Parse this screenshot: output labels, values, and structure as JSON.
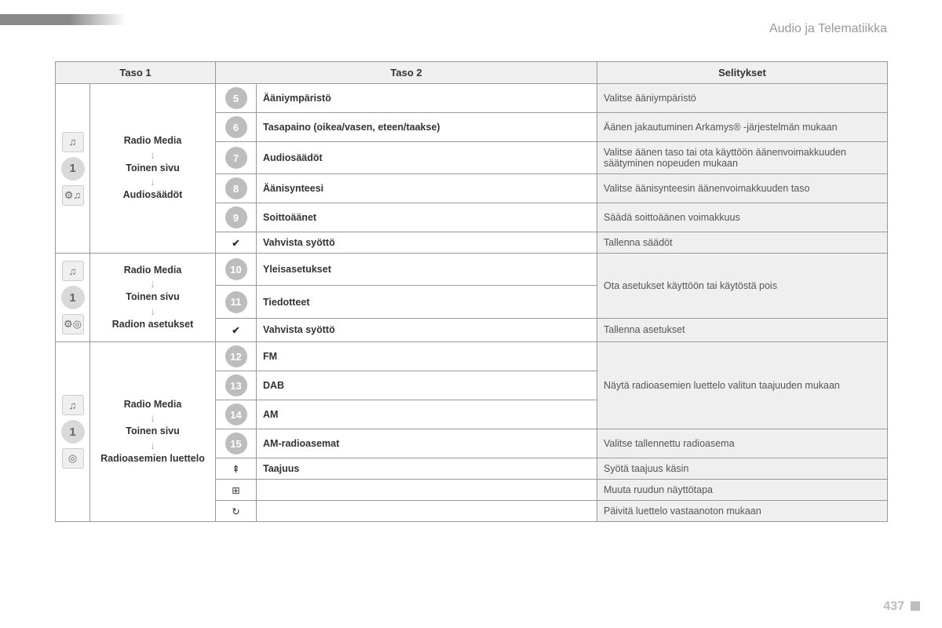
{
  "header": "Audio ja Telematiikka",
  "page_number": "437",
  "columns": {
    "taso1": "Taso 1",
    "taso2": "Taso 2",
    "selitykset": "Selitykset"
  },
  "section1": {
    "nav": {
      "l1": "Radio Media",
      "l2": "Toinen sivu",
      "l3": "Audiosäädöt"
    },
    "rows": [
      {
        "num": "5",
        "label": "Ääniympäristö",
        "desc": "Valitse ääniympäristö"
      },
      {
        "num": "6",
        "label": "Tasapaino (oikea/vasen, eteen/taakse)",
        "desc": "Äänen jakautuminen Arkamys® -järjestelmän mukaan"
      },
      {
        "num": "7",
        "label": "Audiosäädöt",
        "desc": "Valitse äänen taso tai ota käyttöön äänenvoimakkuuden säätyminen nopeuden mukaan"
      },
      {
        "num": "8",
        "label": "Äänisynteesi",
        "desc": "Valitse äänisynteesin äänenvoimakkuuden taso"
      },
      {
        "num": "9",
        "label": "Soittoäänet",
        "desc": "Säädä soittoäänen voimakkuus"
      },
      {
        "num": "✔",
        "label": "Vahvista syöttö",
        "desc": "Tallenna säädöt",
        "check": true
      }
    ]
  },
  "section2": {
    "nav": {
      "l1": "Radio Media",
      "l2": "Toinen sivu",
      "l3": "Radion asetukset"
    },
    "rows": [
      {
        "num": "10",
        "label": "Yleisasetukset",
        "desc": "Ota asetukset käyttöön tai käytöstä pois",
        "desc_rowspan": 2
      },
      {
        "num": "11",
        "label": "Tiedotteet"
      },
      {
        "num": "✔",
        "label": "Vahvista syöttö",
        "desc": "Tallenna asetukset",
        "check": true
      }
    ]
  },
  "section3": {
    "nav": {
      "l1": "Radio Media",
      "l2": "Toinen sivu",
      "l3": "Radioasemien luettelo"
    },
    "rows": [
      {
        "num": "12",
        "label": "FM",
        "desc": "Näytä radioasemien luettelo valitun taajuuden mukaan",
        "desc_rowspan": 3
      },
      {
        "num": "13",
        "label": "DAB"
      },
      {
        "num": "14",
        "label": "AM"
      },
      {
        "num": "15",
        "label": "AM-radioasemat",
        "desc": "Valitse tallennettu radioasema"
      },
      {
        "icon": "⇞",
        "label": "Taajuus",
        "desc": "Syötä taajuus käsin"
      },
      {
        "icon": "⊞",
        "label": "",
        "desc": "Muuta ruudun näyttötapa"
      },
      {
        "icon": "↻",
        "label": "",
        "desc": "Päivitä luettelo vastaanoton mukaan"
      }
    ]
  }
}
